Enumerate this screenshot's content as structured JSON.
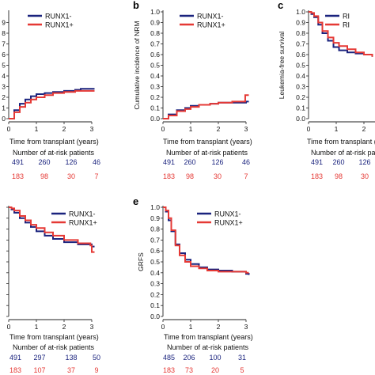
{
  "colors": {
    "runx1_neg": "#1a237e",
    "runx1_pos": "#e53935",
    "axis": "#222222"
  },
  "at_risk_title": "Number of at-risk patients",
  "chart_data": [
    {
      "id": "a",
      "type": "line",
      "panel_label": "",
      "title": "",
      "xlabel": "Time from transplant (years)",
      "ylabel": "",
      "xlim": [
        0,
        3
      ],
      "ylim": [
        0,
        1.0
      ],
      "xticks": [
        "0",
        "1",
        "2",
        "3"
      ],
      "yticks": [
        "0",
        "1",
        "2",
        "3",
        "4",
        "5",
        "6",
        "7",
        "8",
        "9"
      ],
      "legend": {
        "position": "top-right",
        "entries": [
          "RUNX1-",
          "RUNX1+"
        ]
      },
      "series": [
        {
          "name": "RUNX1-",
          "x": [
            0,
            0.2,
            0.4,
            0.6,
            0.8,
            1.0,
            1.3,
            1.6,
            2.0,
            2.4,
            2.6,
            3.1
          ],
          "y": [
            0,
            0.08,
            0.14,
            0.18,
            0.21,
            0.23,
            0.24,
            0.25,
            0.26,
            0.27,
            0.28,
            0.28
          ]
        },
        {
          "name": "RUNX1+",
          "x": [
            0,
            0.2,
            0.4,
            0.6,
            0.8,
            1.0,
            1.3,
            1.6,
            2.0,
            2.4,
            2.6,
            3.1
          ],
          "y": [
            0,
            0.06,
            0.11,
            0.15,
            0.18,
            0.2,
            0.22,
            0.24,
            0.25,
            0.26,
            0.26,
            0.26
          ]
        }
      ],
      "at_risk": {
        "RUNX1-": [
          "491",
          "260",
          "126",
          "46"
        ],
        "RUNX1+": [
          "183",
          "98",
          "30",
          "7"
        ]
      }
    },
    {
      "id": "b",
      "type": "line",
      "panel_label": "b",
      "title": "",
      "xlabel": "Time from transplant (years)",
      "ylabel": "Cumulative incidence of NRM",
      "xlim": [
        0,
        3
      ],
      "ylim": [
        0,
        1.0
      ],
      "xticks": [
        "0",
        "1",
        "2",
        "3"
      ],
      "yticks": [
        "0.0",
        "0.1",
        "0.2",
        "0.3",
        "0.4",
        "0.5",
        "0.6",
        "0.7",
        "0.8",
        "0.9",
        "1.0"
      ],
      "legend": {
        "position": "top-right",
        "entries": [
          "RUNX1-",
          "RUNX1+"
        ]
      },
      "series": [
        {
          "name": "RUNX1-",
          "x": [
            0,
            0.2,
            0.5,
            0.8,
            1.0,
            1.3,
            1.7,
            2.0,
            2.5,
            3.0,
            3.1
          ],
          "y": [
            0,
            0.04,
            0.08,
            0.1,
            0.12,
            0.13,
            0.14,
            0.15,
            0.15,
            0.16,
            0.16
          ]
        },
        {
          "name": "RUNX1+",
          "x": [
            0,
            0.2,
            0.5,
            0.8,
            1.0,
            1.3,
            1.7,
            2.0,
            2.5,
            2.95,
            2.97,
            3.1
          ],
          "y": [
            0,
            0.03,
            0.07,
            0.09,
            0.11,
            0.13,
            0.14,
            0.15,
            0.16,
            0.16,
            0.22,
            0.22
          ]
        }
      ],
      "at_risk": {
        "RUNX1-": [
          "491",
          "260",
          "126",
          "46"
        ],
        "RUNX1+": [
          "183",
          "98",
          "30",
          "7"
        ]
      }
    },
    {
      "id": "c",
      "type": "line",
      "panel_label": "c",
      "title": "",
      "xlabel": "Time from transplant (ye",
      "ylabel": "Leukemia-free survival",
      "xlim": [
        0,
        3
      ],
      "ylim": [
        0,
        1.0
      ],
      "xticks": [
        "0",
        "1",
        "2"
      ],
      "yticks": [
        "0.0",
        "0.1",
        "0.2",
        "0.3",
        "0.4",
        "0.5",
        "0.6",
        "0.7",
        "0.8",
        "0.9",
        "1.0"
      ],
      "legend": {
        "position": "top-right",
        "entries": [
          "RI",
          "RI"
        ]
      },
      "series": [
        {
          "name": "",
          "x": [
            0,
            0.1,
            0.2,
            0.35,
            0.5,
            0.7,
            0.9,
            1.1,
            1.4,
            1.7,
            2.0,
            2.3
          ],
          "y": [
            1.0,
            0.98,
            0.95,
            0.88,
            0.8,
            0.73,
            0.67,
            0.64,
            0.62,
            0.61,
            0.6,
            0.58
          ]
        },
        {
          "name": "",
          "x": [
            0,
            0.1,
            0.2,
            0.35,
            0.5,
            0.7,
            0.9,
            1.1,
            1.4,
            1.7,
            2.0,
            2.3
          ],
          "y": [
            1.0,
            0.99,
            0.96,
            0.9,
            0.82,
            0.76,
            0.71,
            0.68,
            0.65,
            0.62,
            0.6,
            0.58
          ]
        }
      ],
      "at_risk": {
        "RUNX1-": [
          "491",
          "260",
          "126"
        ],
        "RUNX1+": [
          "183",
          "98",
          "30"
        ]
      }
    },
    {
      "id": "d",
      "type": "line",
      "panel_label": "",
      "title": "",
      "xlabel": "Time from transplant (years)",
      "ylabel": "",
      "xlim": [
        0,
        3
      ],
      "ylim": [
        0,
        1.0
      ],
      "xticks": [
        "0",
        "1",
        "2",
        "3"
      ],
      "yticks": [],
      "legend": {
        "position": "top-right",
        "entries": [
          "RUNX1-",
          "RUNX1+"
        ]
      },
      "series": [
        {
          "name": "RUNX1-",
          "x": [
            0,
            0.1,
            0.2,
            0.4,
            0.6,
            0.8,
            1.0,
            1.3,
            1.6,
            2.0,
            2.5,
            3.0,
            3.1
          ],
          "y": [
            1.0,
            0.98,
            0.95,
            0.9,
            0.86,
            0.82,
            0.78,
            0.74,
            0.71,
            0.68,
            0.66,
            0.64,
            0.64
          ]
        },
        {
          "name": "RUNX1+",
          "x": [
            0,
            0.1,
            0.2,
            0.4,
            0.6,
            0.8,
            1.0,
            1.3,
            1.6,
            2.0,
            2.5,
            2.95,
            3.0,
            3.1
          ],
          "y": [
            1.0,
            0.99,
            0.97,
            0.92,
            0.88,
            0.84,
            0.81,
            0.77,
            0.74,
            0.7,
            0.67,
            0.65,
            0.59,
            0.59
          ]
        }
      ],
      "at_risk": {
        "RUNX1-": [
          "491",
          "297",
          "138",
          "50"
        ],
        "RUNX1+": [
          "183",
          "107",
          "37",
          "9"
        ]
      }
    },
    {
      "id": "e",
      "type": "line",
      "panel_label": "e",
      "title": "",
      "xlabel": "Time from transplant (years)",
      "ylabel": "GRFS",
      "xlim": [
        0,
        3
      ],
      "ylim": [
        0,
        1.0
      ],
      "xticks": [
        "0",
        "1",
        "2",
        "3"
      ],
      "yticks": [
        "0.0",
        "0.1",
        "0.2",
        "0.3",
        "0.4",
        "0.5",
        "0.6",
        "0.7",
        "0.8",
        "0.9",
        "1.0"
      ],
      "legend": {
        "position": "top-right",
        "entries": [
          "RUNX1-",
          "RUNX1+"
        ]
      },
      "series": [
        {
          "name": "RUNX1-",
          "x": [
            0,
            0.1,
            0.2,
            0.3,
            0.45,
            0.6,
            0.8,
            1.0,
            1.3,
            1.6,
            2.0,
            2.5,
            3.0,
            3.1
          ],
          "y": [
            1.0,
            0.96,
            0.88,
            0.78,
            0.66,
            0.58,
            0.52,
            0.48,
            0.45,
            0.43,
            0.42,
            0.41,
            0.39,
            0.38
          ]
        },
        {
          "name": "RUNX1+",
          "x": [
            0,
            0.1,
            0.2,
            0.3,
            0.45,
            0.6,
            0.8,
            1.0,
            1.3,
            1.6,
            2.0,
            2.5,
            3.0,
            3.1
          ],
          "y": [
            1.0,
            0.97,
            0.9,
            0.79,
            0.65,
            0.56,
            0.5,
            0.46,
            0.44,
            0.42,
            0.41,
            0.41,
            0.4,
            0.4
          ]
        }
      ],
      "at_risk": {
        "RUNX1-": [
          "485",
          "206",
          "100",
          "31"
        ],
        "RUNX1+": [
          "183",
          "73",
          "20",
          "5"
        ]
      }
    }
  ]
}
